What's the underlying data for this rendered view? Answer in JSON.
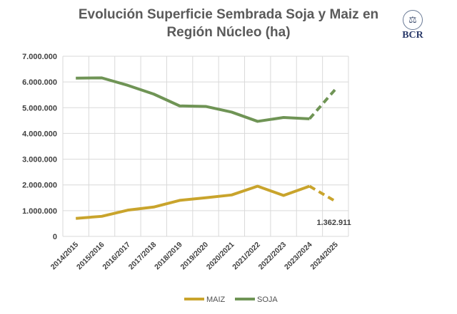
{
  "chart_data": {
    "type": "line",
    "title_line1": "Evolución Superficie Sembrada Soja y Maiz en",
    "title_line2": "Región Núcleo (ha)",
    "logo_text": "BCR",
    "xlabel": "",
    "ylabel": "",
    "ylim": [
      0,
      7000000
    ],
    "yticks": [
      0,
      1000000,
      2000000,
      3000000,
      4000000,
      5000000,
      6000000,
      7000000
    ],
    "ytick_labels": [
      "0",
      "1.000.000",
      "2.000.000",
      "3.000.000",
      "4.000.000",
      "5.000.000",
      "6.000.000",
      "7.000.000"
    ],
    "categories": [
      "2014/2015",
      "2015/2016",
      "2016/2017",
      "2017/2018",
      "2018/2019",
      "2019/2020",
      "2020/2021",
      "2021/2022",
      "2022/2023",
      "2023/2024",
      "2024/2025"
    ],
    "grid": true,
    "legend_position": "bottom",
    "series": [
      {
        "name": "MAIZ",
        "color": "#c9a42c",
        "values": [
          700000,
          780000,
          1020000,
          1140000,
          1400000,
          1500000,
          1610000,
          1950000,
          1590000,
          1950000,
          1362911
        ],
        "projected_last": true
      },
      {
        "name": "SOJA",
        "color": "#6f9455",
        "values": [
          6150000,
          6160000,
          5870000,
          5530000,
          5070000,
          5050000,
          4830000,
          4470000,
          4620000,
          4570000,
          5720000
        ],
        "projected_last": true
      }
    ],
    "annotations": [
      {
        "text": "1.362.911",
        "series": "MAIZ",
        "category": "2024/2025"
      }
    ]
  }
}
